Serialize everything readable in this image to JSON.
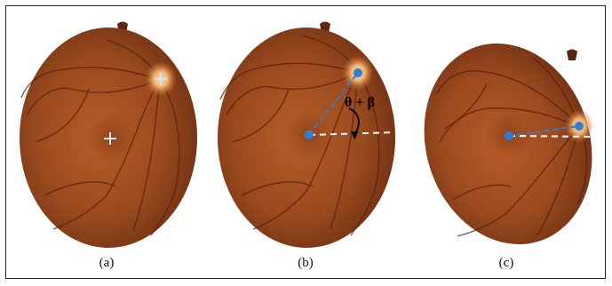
{
  "panels": [
    {
      "id": "a",
      "caption": "(a)"
    },
    {
      "id": "b",
      "caption": "(b)",
      "angle_label": "θ + β"
    },
    {
      "id": "c",
      "caption": "(c)"
    }
  ],
  "colors": {
    "fundus_outer": "#6e2f12",
    "fundus_mid": "#9a4a1e",
    "fundus_center": "#b85c28",
    "optic_disc": "#f0b070",
    "landmark_blue": "#2f7fd6",
    "marker_light": "#cfe6ff",
    "reference_line": "#ffffff",
    "vessel": "#5a1e0c"
  }
}
